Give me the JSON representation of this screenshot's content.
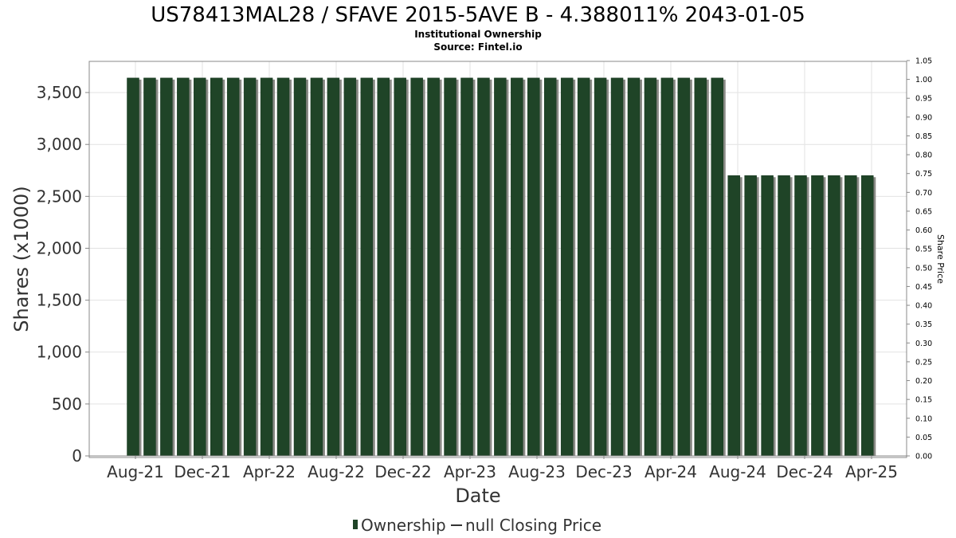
{
  "title": "US78413MAL28 / SFAVE 2015-5AVE B - 4.388011% 2043-01-05",
  "subtitle_lines": [
    "Institutional Ownership",
    "Source: Fintel.io"
  ],
  "legend": {
    "ownership_label": "Ownership",
    "price_label": "null Closing Price"
  },
  "colors": {
    "bar": "#1f4427",
    "bar_shadow": "#8a8a86",
    "grid": "#e2e2e2",
    "axis": "#888888"
  },
  "chart_data": {
    "type": "bar",
    "title": "US78413MAL28 / SFAVE 2015-5AVE B - 4.388011% 2043-01-05",
    "xlabel": "Date",
    "ylabel": "Shares (x1000)",
    "y2label": "Share Price",
    "ylim": [
      0,
      3800
    ],
    "y2lim": [
      0,
      1.05
    ],
    "grid": true,
    "legend_position": "bottom",
    "xtick_labels": [
      "Aug-21",
      "Dec-21",
      "Apr-22",
      "Aug-22",
      "Dec-22",
      "Apr-23",
      "Aug-23",
      "Dec-23",
      "Apr-24",
      "Aug-24",
      "Dec-24",
      "Apr-25"
    ],
    "ytick_labels": [
      "0",
      "500",
      "1,000",
      "1,500",
      "2,000",
      "2,500",
      "3,000",
      "3,500"
    ],
    "ytick_values": [
      0,
      500,
      1000,
      1500,
      2000,
      2500,
      3000,
      3500
    ],
    "y2tick_labels": [
      "0.00",
      "0.05",
      "0.10",
      "0.15",
      "0.20",
      "0.25",
      "0.30",
      "0.35",
      "0.40",
      "0.45",
      "0.50",
      "0.55",
      "0.60",
      "0.65",
      "0.70",
      "0.75",
      "0.80",
      "0.85",
      "0.90",
      "0.95",
      "1.00",
      "1.05"
    ],
    "series": [
      {
        "name": "Ownership",
        "values": [
          3640,
          3640,
          3640,
          3640,
          3640,
          3640,
          3640,
          3640,
          3640,
          3640,
          3640,
          3640,
          3640,
          3640,
          3640,
          3640,
          3640,
          3640,
          3640,
          3640,
          3640,
          3640,
          3640,
          3640,
          3640,
          3640,
          3640,
          3640,
          3640,
          3640,
          3640,
          3640,
          3640,
          3640,
          3640,
          3640,
          2700,
          2700,
          2700,
          2700,
          2700,
          2700,
          2700,
          2700,
          2700
        ]
      }
    ]
  }
}
